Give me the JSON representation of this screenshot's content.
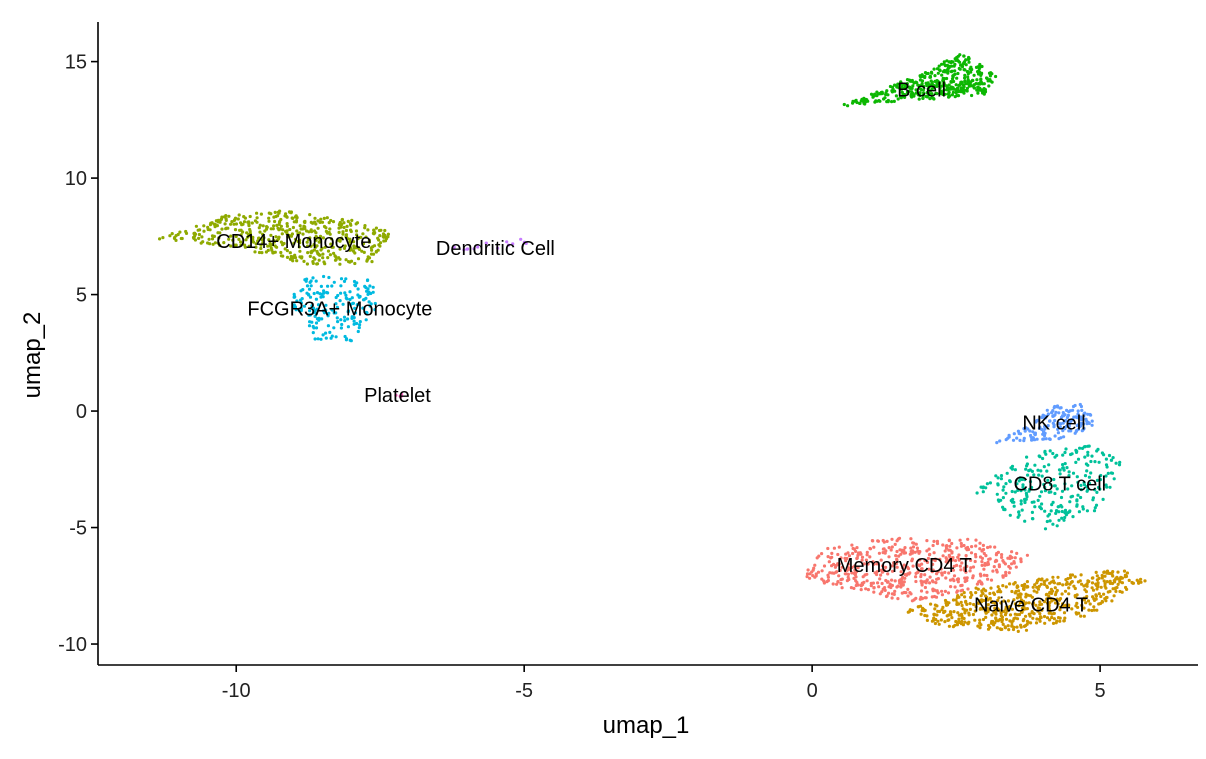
{
  "chart_data": {
    "type": "scatter",
    "xlabel": "umap_1",
    "ylabel": "umap_2",
    "xlim": [
      -12.4,
      6.7
    ],
    "ylim": [
      -10.9,
      16.7
    ],
    "x_ticks": [
      -10,
      -5,
      0,
      5
    ],
    "y_ticks": [
      -10,
      -5,
      0,
      5,
      10,
      15
    ],
    "x_tick_labels": [
      "-10",
      "-5",
      "0",
      "5"
    ],
    "y_tick_labels": [
      "-10",
      "-5",
      "0",
      "5",
      "10",
      "15"
    ],
    "grid": false,
    "legend": "none",
    "clusters": [
      {
        "label": "B cell",
        "color": "#0CB702",
        "center": [
          1.9,
          13.8
        ],
        "region": [
          [
            0.4,
            13.0
          ],
          [
            1.2,
            13.8
          ],
          [
            2.0,
            14.6
          ],
          [
            2.6,
            15.4
          ],
          [
            3.2,
            14.4
          ],
          [
            3.0,
            13.6
          ],
          [
            2.2,
            13.4
          ],
          [
            1.0,
            13.2
          ]
        ],
        "count": 420
      },
      {
        "label": "CD14+ Monocyte",
        "color": "#8FAA00",
        "center": [
          -9.0,
          7.3
        ],
        "region": [
          [
            -11.4,
            7.4
          ],
          [
            -10.2,
            8.4
          ],
          [
            -9.2,
            8.6
          ],
          [
            -8.0,
            8.2
          ],
          [
            -7.3,
            7.7
          ],
          [
            -7.6,
            6.4
          ],
          [
            -8.6,
            6.2
          ],
          [
            -9.8,
            6.9
          ]
        ],
        "count": 480
      },
      {
        "label": "FCGR3A+ Monocyte",
        "color": "#00BAE0",
        "center": [
          -8.2,
          4.4
        ],
        "region": [
          [
            -9.0,
            5.6
          ],
          [
            -8.2,
            5.9
          ],
          [
            -7.5,
            5.6
          ],
          [
            -7.6,
            4.2
          ],
          [
            -8.0,
            3.0
          ],
          [
            -8.6,
            3.0
          ],
          [
            -9.0,
            4.2
          ]
        ],
        "count": 180
      },
      {
        "label": "Dendritic Cell",
        "color": "#C77CFF",
        "center": [
          -5.5,
          7.0
        ],
        "region": [
          [
            -6.5,
            7.0
          ],
          [
            -5.0,
            7.4
          ],
          [
            -4.9,
            7.0
          ],
          [
            -6.2,
            6.9
          ]
        ],
        "count": 14
      },
      {
        "label": "Platelet",
        "color": "#FF61C3",
        "center": [
          -7.2,
          0.7
        ],
        "region": [
          [
            -7.3,
            0.6
          ],
          [
            -7.1,
            0.8
          ],
          [
            -7.1,
            0.6
          ]
        ],
        "count": 4
      },
      {
        "label": "NK cell",
        "color": "#619CFF",
        "center": [
          4.2,
          -0.5
        ],
        "region": [
          [
            3.1,
            -1.4
          ],
          [
            3.8,
            -0.6
          ],
          [
            4.2,
            0.3
          ],
          [
            4.8,
            0.3
          ],
          [
            4.9,
            -0.6
          ],
          [
            4.4,
            -1.2
          ],
          [
            3.4,
            -1.3
          ]
        ],
        "count": 160
      },
      {
        "label": "CD8 T cell",
        "color": "#00C19A",
        "center": [
          4.3,
          -3.1
        ],
        "region": [
          [
            2.8,
            -3.4
          ],
          [
            3.8,
            -1.8
          ],
          [
            4.8,
            -1.4
          ],
          [
            5.4,
            -2.2
          ],
          [
            5.0,
            -4.2
          ],
          [
            4.0,
            -5.2
          ],
          [
            3.2,
            -4.2
          ]
        ],
        "count": 260
      },
      {
        "label": "Memory CD4 T",
        "color": "#F8766D",
        "center": [
          1.6,
          -6.6
        ],
        "region": [
          [
            -0.2,
            -7.2
          ],
          [
            0.2,
            -5.9
          ],
          [
            1.4,
            -5.4
          ],
          [
            2.8,
            -5.5
          ],
          [
            3.8,
            -6.2
          ],
          [
            3.2,
            -7.4
          ],
          [
            1.8,
            -8.2
          ],
          [
            0.6,
            -7.7
          ]
        ],
        "count": 520
      },
      {
        "label": "Naive CD4 T",
        "color": "#CD9600",
        "center": [
          3.8,
          -8.3
        ],
        "region": [
          [
            1.6,
            -8.6
          ],
          [
            2.8,
            -7.6
          ],
          [
            4.2,
            -7.1
          ],
          [
            5.4,
            -6.8
          ],
          [
            5.8,
            -7.3
          ],
          [
            4.8,
            -8.8
          ],
          [
            3.6,
            -9.5
          ],
          [
            2.2,
            -9.2
          ]
        ],
        "count": 560
      }
    ]
  }
}
